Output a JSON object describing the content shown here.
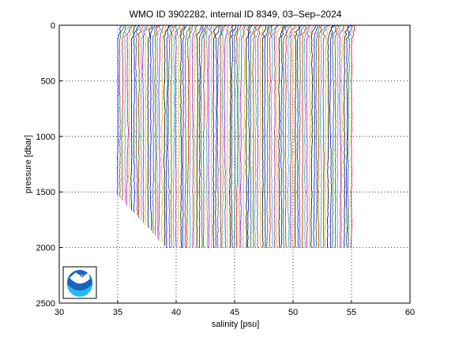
{
  "chart_data": {
    "type": "line",
    "title": "WMO ID 3902282, internal ID 8349, 03–Sep–2024",
    "xlabel": "salinity [psu]",
    "ylabel": "pressure [dbar]",
    "xlim": [
      30,
      60
    ],
    "ylim": [
      0,
      2500
    ],
    "y_reversed": true,
    "xticks": [
      "30",
      "35",
      "40",
      "45",
      "50",
      "55",
      "60"
    ],
    "yticks": [
      "0",
      "500",
      "1000",
      "1500",
      "2000",
      "2500"
    ],
    "grid": true,
    "grid_style": "dotted",
    "series_colors": [
      "#0000ff",
      "#008000",
      "#ff0000",
      "#00bfbf",
      "#bf00bf",
      "#bfbf00",
      "#000000"
    ],
    "profile_count": 101,
    "profile_offset_psu": 0.2,
    "first_profile_salinity_psu": 35.0,
    "first_profile_max_pressure_dbar": 1530,
    "max_profile_pressure_dbar": 2000,
    "logo": "noaa-logo"
  }
}
